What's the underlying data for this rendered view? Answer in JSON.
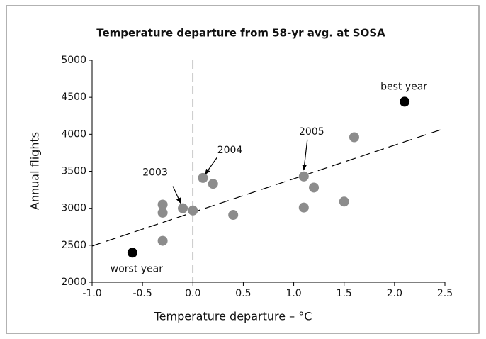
{
  "chart_data": {
    "type": "scatter",
    "title": "Temperature departure from 58-yr avg. at SOSA",
    "x_label": "Temperature departure – °C",
    "y_label": "Annual flights",
    "xlim": [
      -1.0,
      2.5
    ],
    "ylim": [
      2000,
      5000
    ],
    "xticks": [
      {
        "value": -1.0,
        "label": "-1.0"
      },
      -0.5,
      {
        "value": 0,
        "label": "0.0"
      },
      0.5,
      {
        "value": 1,
        "label": "1.0"
      },
      1.5,
      {
        "value": 2,
        "label": "2.0"
      },
      2.5
    ],
    "yticks": [
      2000,
      2500,
      3000,
      3500,
      4000,
      4500,
      5000
    ],
    "series": [
      {
        "color": "#8c8c8c",
        "x": [
          0.0,
          -0.3,
          -0.3,
          -0.3,
          -0.1,
          0.1,
          0.2,
          0.4,
          1.1,
          1.1,
          1.2,
          1.5,
          1.6
        ],
        "values": [
          2970,
          3050,
          2940,
          2560,
          3000,
          3410,
          3330,
          2910,
          3430,
          3010,
          3280,
          3090,
          3960
        ]
      },
      {
        "color": "#000000",
        "x": [
          -0.6,
          2.1
        ],
        "values": [
          2400,
          4440
        ]
      }
    ],
    "trend": {
      "x": [
        -1.0,
        2.5
      ],
      "values": [
        2490,
        4080
      ]
    },
    "zero_line": 0,
    "annotations": [
      {
        "text": "2003",
        "x": -0.1,
        "y": 3000
      },
      {
        "text": "2004",
        "x": 0.1,
        "y": 3410
      },
      {
        "text": "2005",
        "x": 1.1,
        "y": 3430
      },
      {
        "text": "best year",
        "x": 2.1,
        "y": 4440
      },
      {
        "text": "worst year",
        "x": -0.6,
        "y": 2400
      }
    ]
  }
}
